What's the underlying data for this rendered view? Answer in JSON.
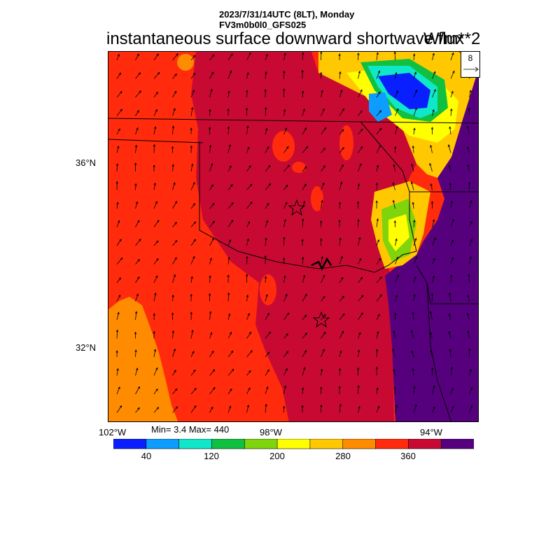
{
  "header": {
    "line1": "2023/7/31/14UTC (8LT), Monday",
    "line2": "FV3m0b0l0_GFS025",
    "title": "instantaneous surface downward shortwave flux",
    "units": "W/m**2"
  },
  "vector_key": {
    "value": "8"
  },
  "stats": {
    "text": "Min= 3.4 Max= 440",
    "min": 3.4,
    "max": 440
  },
  "map": {
    "lat_labels": [
      "36°N",
      "32°N"
    ],
    "lon_labels": [
      "102°W",
      "98°W",
      "94°W"
    ],
    "markers": [
      "star-marker",
      "star-marker"
    ]
  },
  "colorbar": {
    "colors": [
      "#0a1fff",
      "#0d9cff",
      "#10e6c8",
      "#10c040",
      "#7fd40c",
      "#ffff00",
      "#ffc800",
      "#ff8c00",
      "#ff2b0c",
      "#c80a32",
      "#56007e"
    ],
    "tick_labels": [
      "40",
      "120",
      "200",
      "280",
      "360"
    ]
  },
  "colors": {
    "c320": "#ff8c00",
    "c360": "#ff2b0c",
    "c400": "#c80a32",
    "c440": "#56007e",
    "bright_yellow": "#ffff00",
    "blue": "#0a1fff",
    "cyan": "#10e6c8",
    "green": "#10c040"
  }
}
